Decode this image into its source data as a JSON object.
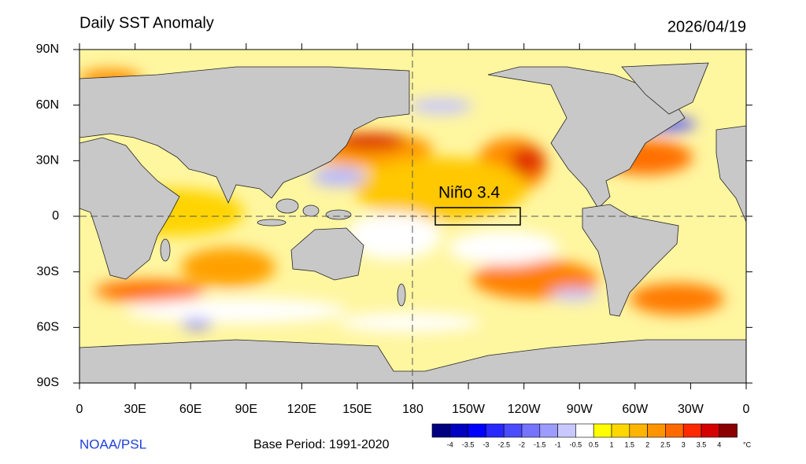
{
  "header": {
    "title": "Daily SST Anomaly",
    "date": "2026/04/19"
  },
  "map": {
    "lat_labels": [
      "90N",
      "60N",
      "30N",
      "0",
      "30S",
      "60S",
      "90S"
    ],
    "lon_labels": [
      "0",
      "30E",
      "60E",
      "90E",
      "120E",
      "150E",
      "180",
      "150W",
      "120W",
      "90W",
      "60W",
      "30W",
      "0"
    ],
    "region_label": "Niño 3.4"
  },
  "colorbar": {
    "ticks": [
      -4,
      -3.5,
      -3,
      -2.5,
      -2,
      -1.5,
      -1,
      -0.5,
      0.5,
      1,
      1.5,
      2,
      2.5,
      3,
      3.5,
      4
    ],
    "colors": [
      "#000080",
      "#0000c0",
      "#0000ff",
      "#2828ff",
      "#4c4cff",
      "#7474ff",
      "#9c9cff",
      "#c8c8ff",
      "#ffffff",
      "#ffff00",
      "#ffd700",
      "#ffb400",
      "#ff9400",
      "#ff6a00",
      "#ff2a00",
      "#d40000",
      "#8b0000"
    ],
    "unit": "°C"
  },
  "footer": {
    "source": "NOAA/PSL",
    "base_period": "Base Period: 1991-2020"
  }
}
